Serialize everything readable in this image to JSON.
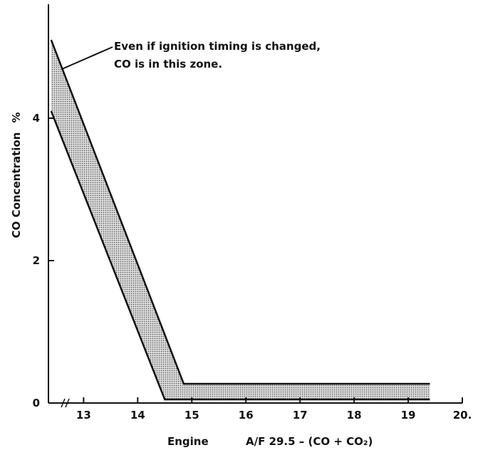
{
  "chart_data": {
    "type": "band",
    "annotation": [
      "Even if ignition timing is changed,",
      "CO is in this zone."
    ],
    "y_label": "CO Concentration",
    "y_unit": "%",
    "x_label_left": "Engine",
    "x_label": "A/F 29.5 – (CO + CO₂)",
    "xlim": [
      12.35,
      20
    ],
    "ylim": [
      0,
      5.6
    ],
    "xticks": [
      13,
      14,
      15,
      16,
      17,
      18,
      19,
      {
        "value": 20,
        "label": "20."
      }
    ],
    "yticks": [
      0,
      2,
      4
    ],
    "series": [
      {
        "name": "upper",
        "color": "#111",
        "x": [
          12.4,
          14.85,
          19.4
        ],
        "values": [
          5.1,
          0.27,
          0.27
        ]
      },
      {
        "name": "lower",
        "color": "#111",
        "x": [
          12.4,
          14.5,
          19.4
        ],
        "values": [
          4.1,
          0.05,
          0.05
        ]
      }
    ],
    "fill": "#bbb"
  }
}
